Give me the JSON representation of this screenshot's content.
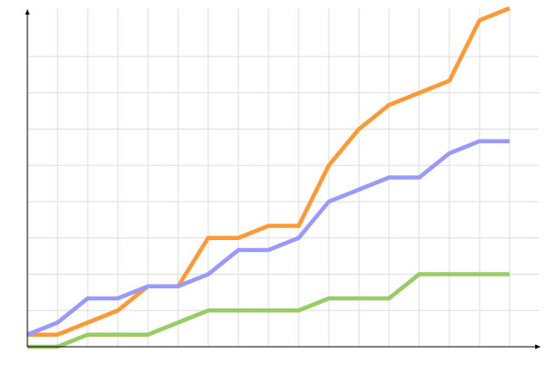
{
  "chart_data": {
    "type": "line",
    "title": "",
    "xlabel": "",
    "ylabel": "",
    "x": [
      0,
      1,
      2,
      3,
      4,
      5,
      6,
      7,
      8,
      9,
      10,
      11,
      12,
      13,
      14,
      15,
      16
    ],
    "xlim": [
      0,
      16
    ],
    "ylim": [
      0,
      28
    ],
    "y_grid_step": 3,
    "y_grid_max": 24,
    "grid": true,
    "axis_arrows": true,
    "tick_labels": false,
    "legend": "none",
    "series": [
      {
        "color": "#ff9933",
        "values": [
          1,
          1,
          2,
          3,
          5,
          5,
          9,
          9,
          10,
          10,
          15,
          18,
          20,
          21,
          22,
          27,
          28
        ]
      },
      {
        "color": "#9999ff",
        "values": [
          1,
          2,
          4,
          4,
          5,
          5,
          6,
          8,
          8,
          9,
          12,
          13,
          14,
          14,
          16,
          17,
          17
        ]
      },
      {
        "color": "#99cc66",
        "values": [
          0,
          0,
          1,
          1,
          1,
          2,
          3,
          3,
          3,
          3,
          4,
          4,
          4,
          6,
          6,
          6,
          6
        ]
      }
    ],
    "colors": {
      "grid": "#dddddd",
      "axis": "#000000"
    }
  }
}
